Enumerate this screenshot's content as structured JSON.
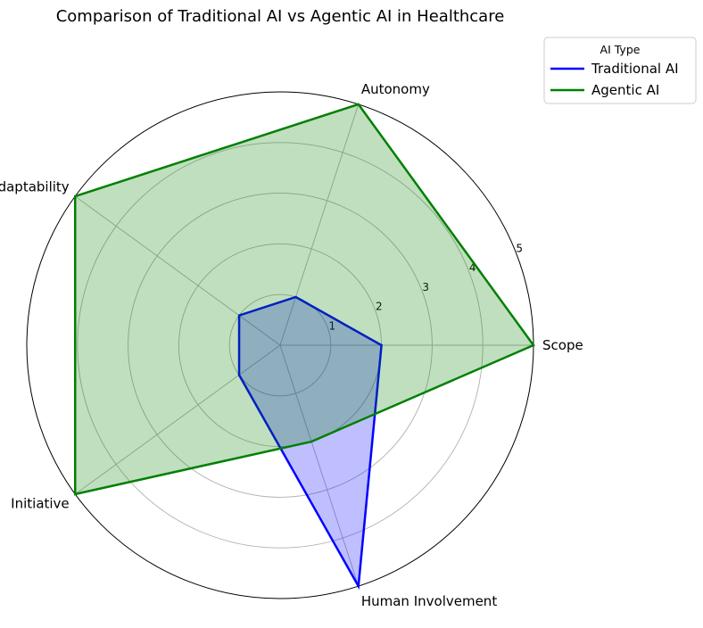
{
  "chart_data": {
    "type": "radar",
    "title": "Comparison of Traditional AI vs Agentic AI in Healthcare",
    "categories": [
      "Scope",
      "Autonomy",
      "Adaptability",
      "Initiative",
      "Human Involvement"
    ],
    "rlim": [
      0,
      5
    ],
    "rticks": [
      "1",
      "2",
      "3",
      "4",
      "5"
    ],
    "grid": true,
    "legend": {
      "title": "AI Type",
      "placement": "upper-right, outside plot"
    },
    "series": [
      {
        "name": "Traditional AI",
        "values": [
          2,
          1,
          1,
          1,
          5
        ],
        "color": "#0000ff",
        "fill": "#0000ff"
      },
      {
        "name": "Agentic AI",
        "values": [
          5,
          5,
          5,
          5,
          2
        ],
        "color": "#008000",
        "fill": "#008000"
      }
    ]
  }
}
